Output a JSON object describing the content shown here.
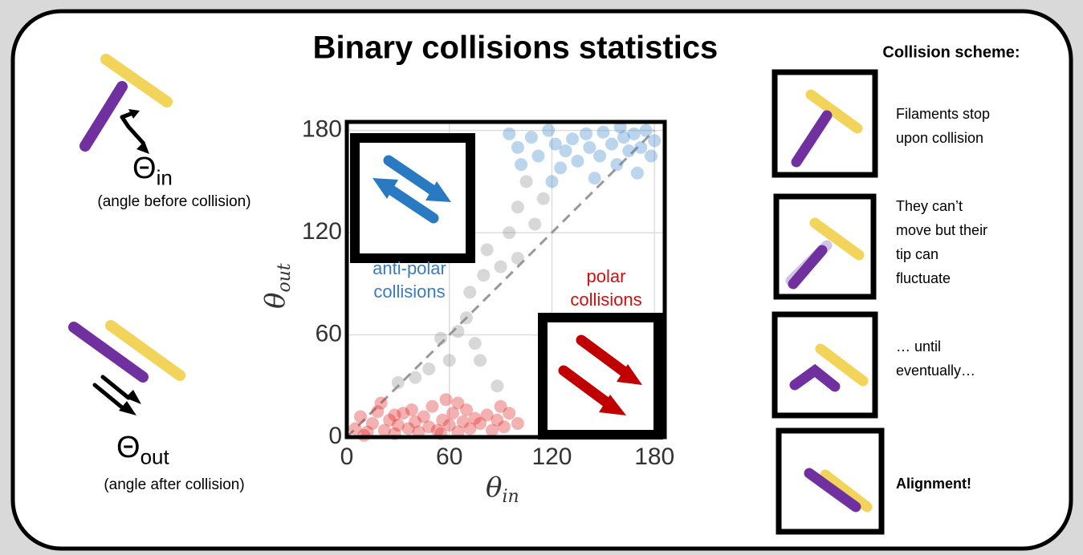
{
  "chart_data": {
    "type": "scatter",
    "title": "Binary collisions statistics",
    "xlabel": {
      "symbol": "θ",
      "sub": "in"
    },
    "ylabel": {
      "symbol": "θ",
      "sub": "out"
    },
    "xlim": [
      0,
      186
    ],
    "ylim": [
      0,
      185
    ],
    "xticks": [
      0,
      60,
      120,
      180
    ],
    "yticks": [
      0,
      60,
      120,
      180
    ],
    "grid": true,
    "diagonal": true,
    "series": [
      {
        "color": "#e02020",
        "x": [
          5,
          8,
          12,
          15,
          18,
          22,
          25,
          28,
          30,
          33,
          36,
          40,
          42,
          45,
          48,
          50,
          53,
          56,
          58,
          60,
          62,
          65,
          68,
          70,
          72,
          75,
          78,
          82,
          85,
          88,
          92,
          95,
          100,
          38,
          20,
          10,
          55,
          65,
          90,
          28
        ],
        "values": [
          5,
          12,
          3,
          8,
          15,
          4,
          10,
          2,
          7,
          14,
          5,
          9,
          3,
          12,
          6,
          18,
          4,
          10,
          22,
          7,
          14,
          3,
          9,
          16,
          5,
          11,
          8,
          13,
          4,
          10,
          6,
          14,
          8,
          16,
          20,
          1,
          2,
          20,
          18,
          13
        ]
      },
      {
        "color": "#909090",
        "x": [
          30,
          40,
          48,
          55,
          60,
          65,
          70,
          72,
          75,
          80,
          82,
          88,
          90,
          95,
          100,
          100,
          110,
          115,
          78,
          105
        ],
        "values": [
          32,
          35,
          40,
          58,
          45,
          62,
          70,
          85,
          55,
          95,
          110,
          30,
          100,
          120,
          135,
          105,
          125,
          140,
          45,
          150
        ]
      },
      {
        "color": "#3a86c8",
        "x": [
          95,
          100,
          102,
          108,
          112,
          118,
          122,
          125,
          128,
          132,
          135,
          140,
          142,
          148,
          150,
          155,
          158,
          162,
          165,
          168,
          170,
          172,
          175,
          178,
          180,
          145,
          120,
          160
        ],
        "values": [
          178,
          170,
          160,
          176,
          165,
          180,
          172,
          158,
          168,
          175,
          162,
          178,
          170,
          165,
          179,
          172,
          160,
          176,
          168,
          178,
          155,
          170,
          180,
          165,
          174,
          152,
          150,
          182
        ]
      }
    ],
    "annotations": [
      {
        "lines": [
          "anti-polar",
          "collisions"
        ],
        "color": "#3a7cc0"
      },
      {
        "lines": [
          "polar",
          "collisions"
        ],
        "color": "#d01010"
      }
    ]
  },
  "left": {
    "in": {
      "symbol": "Θ",
      "sub": "in",
      "caption": "(angle before collision)"
    },
    "out": {
      "symbol": "Θ",
      "sub": "out",
      "caption": "(angle after collision)"
    }
  },
  "scheme": {
    "title": "Collision scheme:",
    "steps": [
      [
        "Filaments stop",
        "upon collision"
      ],
      [
        "They can’t",
        "move but their",
        "tip can",
        "fluctuate"
      ],
      [
        "… until",
        "eventually…"
      ],
      [
        "Alignment!"
      ]
    ]
  }
}
